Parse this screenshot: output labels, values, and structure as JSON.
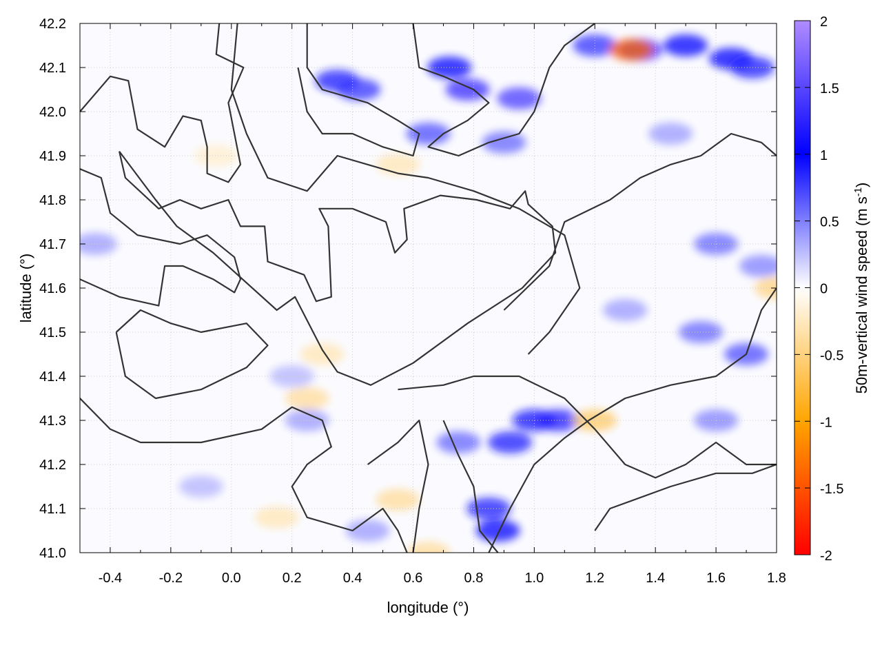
{
  "chart_data": {
    "type": "heatmap",
    "xlabel": "longitude (°)",
    "ylabel": "latitude (°)",
    "colorbar_label": "50m-vertical wind speed (m s",
    "colorbar_label_sup": "-1",
    "colorbar_label_end": ")",
    "xlim": [
      -0.5,
      1.8
    ],
    "ylim": [
      41.0,
      42.2
    ],
    "xticks": [
      "-0.4",
      "-0.2",
      "0.0",
      "0.2",
      "0.4",
      "0.6",
      "0.8",
      "1.0",
      "1.2",
      "1.4",
      "1.6",
      "1.8"
    ],
    "yticks": [
      "41.0",
      "41.1",
      "41.2",
      "41.3",
      "41.4",
      "41.5",
      "41.6",
      "41.7",
      "41.8",
      "41.9",
      "42.0",
      "42.1",
      "42.2"
    ],
    "colorbar": {
      "range": [
        -2,
        2
      ],
      "ticks": [
        "2",
        "1.5",
        "1",
        "0.5",
        "0",
        "-0.5",
        "-1",
        "-1.5",
        "-2"
      ],
      "stops": [
        {
          "value": -2,
          "color": "#ff0000"
        },
        {
          "value": -1,
          "color": "#ffa500"
        },
        {
          "value": 0,
          "color": "#ffffff"
        },
        {
          "value": 1,
          "color": "#0000ff"
        },
        {
          "value": 2,
          "color": "#b08cff"
        }
      ]
    },
    "grid": true,
    "contour_color": "#333333",
    "hotspots": [
      [
        0.78,
        42.05,
        1.3
      ],
      [
        0.95,
        42.03,
        1.4
      ],
      [
        0.72,
        42.1,
        1.0
      ],
      [
        0.35,
        42.07,
        0.9
      ],
      [
        0.42,
        42.05,
        0.8
      ],
      [
        1.35,
        42.14,
        1.2
      ],
      [
        1.5,
        42.15,
        1.0
      ],
      [
        1.65,
        42.12,
        1.0
      ],
      [
        1.72,
        42.1,
        0.9
      ],
      [
        1.2,
        42.15,
        0.8
      ],
      [
        0.65,
        41.95,
        0.7
      ],
      [
        0.9,
        41.93,
        0.6
      ],
      [
        1.0,
        41.3,
        1.1
      ],
      [
        1.08,
        41.3,
        1.2
      ],
      [
        0.92,
        41.25,
        0.9
      ],
      [
        0.85,
        41.1,
        0.9
      ],
      [
        0.88,
        41.05,
        1.0
      ],
      [
        0.75,
        41.25,
        0.6
      ],
      [
        1.55,
        41.5,
        0.6
      ],
      [
        1.7,
        41.45,
        0.7
      ],
      [
        1.6,
        41.7,
        0.6
      ],
      [
        1.75,
        41.65,
        0.5
      ],
      [
        1.6,
        41.3,
        0.5
      ],
      [
        -0.45,
        41.7,
        0.4
      ],
      [
        0.25,
        41.3,
        0.4
      ],
      [
        0.45,
        41.05,
        0.4
      ],
      [
        1.45,
        41.95,
        0.4
      ],
      [
        1.3,
        41.55,
        0.4
      ],
      [
        -0.1,
        41.15,
        0.3
      ],
      [
        0.2,
        41.4,
        0.3
      ]
    ],
    "cold_spots": [
      [
        0.25,
        41.35,
        -0.4
      ],
      [
        0.3,
        41.45,
        -0.3
      ],
      [
        0.55,
        41.12,
        -0.4
      ],
      [
        0.65,
        41.0,
        -0.4
      ],
      [
        1.2,
        41.3,
        -0.6
      ],
      [
        0.15,
        41.08,
        -0.3
      ],
      [
        1.8,
        41.6,
        -0.5
      ],
      [
        0.55,
        41.88,
        -0.3
      ],
      [
        -0.05,
        41.9,
        -0.2
      ],
      [
        1.32,
        42.14,
        -1.4
      ]
    ],
    "contours": [
      [
        [
          -0.5,
          42.0
        ],
        [
          -0.4,
          42.08
        ],
        [
          -0.34,
          42.07
        ],
        [
          -0.31,
          41.96
        ],
        [
          -0.22,
          41.92
        ],
        [
          -0.16,
          41.99
        ],
        [
          -0.1,
          41.98
        ],
        [
          -0.08,
          41.92
        ],
        [
          -0.08,
          41.86
        ],
        [
          -0.01,
          41.84
        ],
        [
          0.03,
          41.88
        ],
        [
          -0.01,
          42.02
        ],
        [
          0.04,
          42.1
        ],
        [
          -0.05,
          42.13
        ],
        [
          -0.04,
          42.2
        ]
      ],
      [
        [
          -0.37,
          41.91
        ],
        [
          -0.35,
          41.85
        ],
        [
          -0.24,
          41.78
        ],
        [
          -0.17,
          41.8
        ],
        [
          -0.1,
          41.78
        ],
        [
          -0.01,
          41.8
        ],
        [
          0.03,
          41.74
        ],
        [
          0.11,
          41.74
        ],
        [
          0.12,
          41.66
        ],
        [
          0.24,
          41.63
        ],
        [
          0.28,
          41.57
        ],
        [
          0.33,
          41.58
        ],
        [
          0.32,
          41.74
        ],
        [
          0.29,
          41.78
        ],
        [
          0.4,
          41.78
        ],
        [
          0.51,
          41.75
        ],
        [
          0.54,
          41.68
        ],
        [
          0.58,
          41.71
        ],
        [
          0.57,
          41.78
        ],
        [
          0.69,
          41.81
        ],
        [
          0.81,
          41.8
        ],
        [
          0.92,
          41.78
        ],
        [
          0.97,
          41.82
        ],
        [
          0.98,
          41.79
        ],
        [
          1.06,
          41.74
        ],
        [
          1.07,
          41.68
        ],
        [
          0.96,
          41.6
        ],
        [
          0.78,
          41.52
        ],
        [
          0.6,
          41.43
        ],
        [
          0.46,
          41.38
        ],
        [
          0.35,
          41.41
        ],
        [
          0.3,
          41.46
        ],
        [
          0.21,
          41.58
        ],
        [
          0.15,
          41.55
        ],
        [
          -0.06,
          41.68
        ],
        [
          -0.18,
          41.74
        ],
        [
          -0.25,
          41.8
        ],
        [
          -0.37,
          41.91
        ]
      ],
      [
        [
          -0.5,
          41.62
        ],
        [
          -0.37,
          41.58
        ],
        [
          -0.24,
          41.56
        ],
        [
          -0.22,
          41.65
        ],
        [
          -0.16,
          41.65
        ],
        [
          -0.06,
          41.62
        ],
        [
          0.01,
          41.59
        ],
        [
          0.03,
          41.62
        ],
        [
          0.01,
          41.67
        ],
        [
          -0.08,
          41.72
        ],
        [
          -0.17,
          41.7
        ],
        [
          -0.31,
          41.72
        ],
        [
          -0.4,
          41.77
        ],
        [
          -0.43,
          41.85
        ],
        [
          -0.5,
          41.87
        ]
      ],
      [
        [
          -0.5,
          41.35
        ],
        [
          -0.4,
          41.28
        ],
        [
          -0.3,
          41.25
        ],
        [
          -0.1,
          41.25
        ],
        [
          0.1,
          41.28
        ],
        [
          0.2,
          41.33
        ],
        [
          0.3,
          41.3
        ],
        [
          0.33,
          41.24
        ],
        [
          0.25,
          41.2
        ],
        [
          0.2,
          41.15
        ],
        [
          0.25,
          41.08
        ],
        [
          0.4,
          41.05
        ],
        [
          0.5,
          41.1
        ],
        [
          0.55,
          41.05
        ],
        [
          0.58,
          41.0
        ]
      ],
      [
        [
          -0.38,
          41.5
        ],
        [
          -0.35,
          41.4
        ],
        [
          -0.25,
          41.35
        ],
        [
          -0.1,
          41.37
        ],
        [
          0.05,
          41.42
        ],
        [
          0.12,
          41.47
        ],
        [
          0.05,
          41.52
        ],
        [
          -0.1,
          41.5
        ],
        [
          -0.2,
          41.52
        ],
        [
          -0.3,
          41.55
        ],
        [
          -0.38,
          41.5
        ]
      ],
      [
        [
          0.55,
          41.37
        ],
        [
          0.7,
          41.38
        ],
        [
          0.8,
          41.4
        ],
        [
          0.95,
          41.4
        ],
        [
          1.1,
          41.35
        ],
        [
          1.2,
          41.28
        ],
        [
          1.3,
          41.2
        ],
        [
          1.4,
          41.17
        ],
        [
          1.5,
          41.2
        ],
        [
          1.6,
          41.25
        ],
        [
          1.7,
          41.2
        ],
        [
          1.8,
          41.2
        ]
      ],
      [
        [
          0.85,
          41.0
        ],
        [
          0.92,
          41.1
        ],
        [
          1.0,
          41.2
        ],
        [
          1.1,
          41.26
        ],
        [
          1.18,
          41.3
        ],
        [
          1.3,
          41.35
        ],
        [
          1.45,
          41.38
        ],
        [
          1.6,
          41.4
        ],
        [
          1.7,
          41.45
        ],
        [
          1.75,
          41.55
        ],
        [
          1.8,
          41.6
        ]
      ],
      [
        [
          1.2,
          41.05
        ],
        [
          1.25,
          41.1
        ],
        [
          1.45,
          41.15
        ],
        [
          1.6,
          41.18
        ],
        [
          1.72,
          41.18
        ],
        [
          1.8,
          41.2
        ]
      ],
      [
        [
          0.9,
          41.55
        ],
        [
          1.05,
          41.65
        ],
        [
          1.1,
          41.75
        ],
        [
          1.25,
          41.8
        ],
        [
          1.35,
          41.85
        ],
        [
          1.45,
          41.88
        ],
        [
          1.55,
          41.9
        ],
        [
          1.65,
          41.95
        ],
        [
          1.75,
          41.93
        ],
        [
          1.8,
          41.9
        ]
      ],
      [
        [
          0.6,
          42.2
        ],
        [
          0.62,
          42.1
        ],
        [
          0.7,
          42.08
        ],
        [
          0.8,
          42.05
        ],
        [
          0.85,
          42.02
        ],
        [
          0.78,
          41.98
        ],
        [
          0.7,
          41.95
        ],
        [
          0.65,
          41.92
        ],
        [
          0.75,
          41.9
        ],
        [
          0.85,
          41.93
        ],
        [
          0.95,
          41.95
        ],
        [
          1.0,
          42.0
        ],
        [
          1.05,
          42.1
        ],
        [
          1.1,
          42.15
        ],
        [
          1.2,
          42.2
        ]
      ],
      [
        [
          0.25,
          42.2
        ],
        [
          0.25,
          42.1
        ],
        [
          0.3,
          42.05
        ],
        [
          0.45,
          42.02
        ],
        [
          0.55,
          41.98
        ],
        [
          0.62,
          41.95
        ],
        [
          0.6,
          41.9
        ],
        [
          0.5,
          41.92
        ],
        [
          0.4,
          41.95
        ],
        [
          0.3,
          41.95
        ],
        [
          0.25,
          42.0
        ],
        [
          0.22,
          42.1
        ]
      ],
      [
        [
          0.02,
          42.2
        ],
        [
          0.0,
          42.05
        ],
        [
          0.05,
          41.95
        ],
        [
          0.12,
          41.85
        ],
        [
          0.25,
          41.82
        ],
        [
          0.35,
          41.9
        ],
        [
          0.45,
          41.88
        ],
        [
          0.55,
          41.86
        ],
        [
          0.65,
          41.85
        ],
        [
          0.8,
          41.82
        ],
        [
          0.95,
          41.78
        ],
        [
          1.1,
          41.72
        ],
        [
          1.15,
          41.6
        ],
        [
          1.05,
          41.5
        ],
        [
          0.98,
          41.45
        ]
      ],
      [
        [
          0.7,
          41.3
        ],
        [
          0.75,
          41.22
        ],
        [
          0.8,
          41.15
        ],
        [
          0.82,
          41.05
        ],
        [
          0.88,
          41.0
        ]
      ],
      [
        [
          0.45,
          41.2
        ],
        [
          0.55,
          41.25
        ],
        [
          0.62,
          41.3
        ],
        [
          0.65,
          41.2
        ],
        [
          0.62,
          41.1
        ],
        [
          0.6,
          41.0
        ]
      ]
    ]
  }
}
